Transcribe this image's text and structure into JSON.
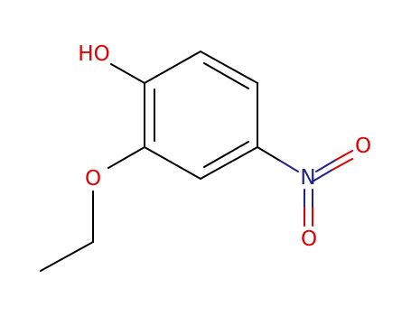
{
  "atoms": [
    {
      "label": "HO"
    },
    {
      "label": "O"
    },
    {
      "label": "N"
    },
    {
      "label": "O"
    },
    {
      "label": "O"
    }
  ]
}
